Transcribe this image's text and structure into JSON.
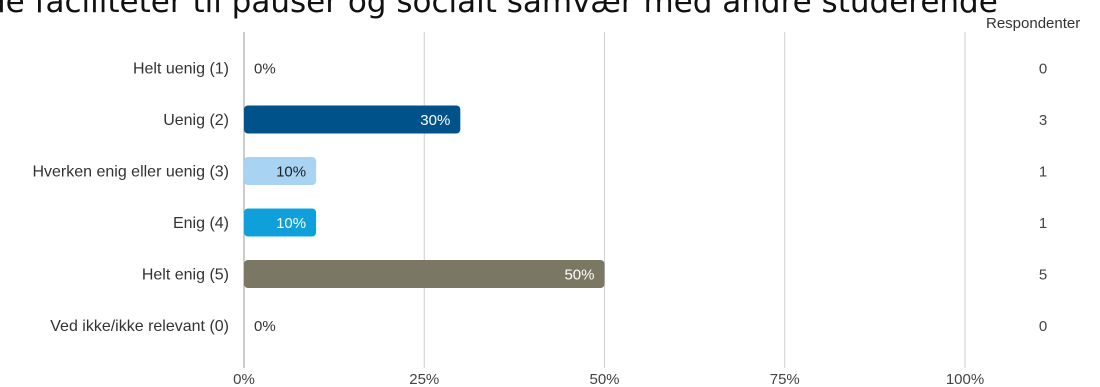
{
  "chart_data": {
    "type": "bar",
    "orientation": "horizontal",
    "title": "de faciliteter til pauser og socialt samvær med andre studerende",
    "categories": [
      "Helt uenig (1)",
      "Uenig (2)",
      "Hverken enig eller uenig (3)",
      "Enig (4)",
      "Helt enig (5)",
      "Ved ikke/ikke relevant (0)"
    ],
    "values": [
      0,
      30,
      10,
      10,
      50,
      0
    ],
    "value_labels": [
      "0%",
      "30%",
      "10%",
      "10%",
      "50%",
      "0%"
    ],
    "respondents_header": "Respondenter",
    "respondents": [
      "0",
      "3",
      "1",
      "1",
      "5",
      "0"
    ],
    "colors": [
      "#9aa0a6",
      "#00538a",
      "#a8d3f2",
      "#0fa0dc",
      "#7a7763",
      "#9aa0a6"
    ],
    "label_colors": [
      "#333333",
      "#ffffff",
      "#222222",
      "#ffffff",
      "#ffffff",
      "#333333"
    ],
    "xlim": [
      0,
      100
    ],
    "x_ticks": [
      0,
      25,
      50,
      75,
      100
    ],
    "x_tick_labels": [
      "0%",
      "25%",
      "50%",
      "75%",
      "100%"
    ],
    "grid": true
  }
}
